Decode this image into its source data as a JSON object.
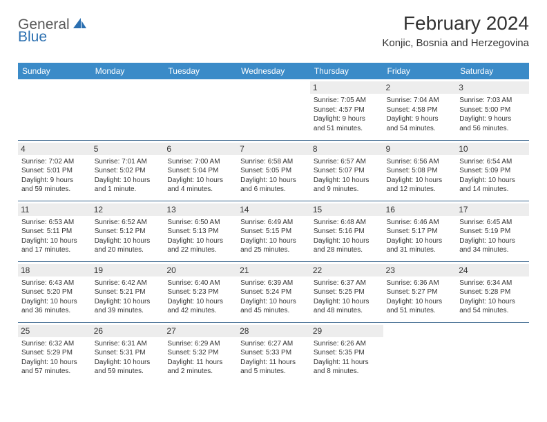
{
  "logo": {
    "part1": "General",
    "part2": "Blue"
  },
  "title": "February 2024",
  "subtitle": "Konjic, Bosnia and Herzegovina",
  "colors": {
    "header_bg": "#3b8bc8",
    "header_text": "#ffffff",
    "daynum_bg": "#ededed",
    "border": "#2f5d87",
    "logo_gray": "#5a5a5a",
    "logo_blue": "#2b6fb0",
    "text": "#333333",
    "background": "#ffffff"
  },
  "day_headers": [
    "Sunday",
    "Monday",
    "Tuesday",
    "Wednesday",
    "Thursday",
    "Friday",
    "Saturday"
  ],
  "weeks": [
    [
      null,
      null,
      null,
      null,
      {
        "n": "1",
        "sr": "Sunrise: 7:05 AM",
        "ss": "Sunset: 4:57 PM",
        "d1": "Daylight: 9 hours",
        "d2": "and 51 minutes."
      },
      {
        "n": "2",
        "sr": "Sunrise: 7:04 AM",
        "ss": "Sunset: 4:58 PM",
        "d1": "Daylight: 9 hours",
        "d2": "and 54 minutes."
      },
      {
        "n": "3",
        "sr": "Sunrise: 7:03 AM",
        "ss": "Sunset: 5:00 PM",
        "d1": "Daylight: 9 hours",
        "d2": "and 56 minutes."
      }
    ],
    [
      {
        "n": "4",
        "sr": "Sunrise: 7:02 AM",
        "ss": "Sunset: 5:01 PM",
        "d1": "Daylight: 9 hours",
        "d2": "and 59 minutes."
      },
      {
        "n": "5",
        "sr": "Sunrise: 7:01 AM",
        "ss": "Sunset: 5:02 PM",
        "d1": "Daylight: 10 hours",
        "d2": "and 1 minute."
      },
      {
        "n": "6",
        "sr": "Sunrise: 7:00 AM",
        "ss": "Sunset: 5:04 PM",
        "d1": "Daylight: 10 hours",
        "d2": "and 4 minutes."
      },
      {
        "n": "7",
        "sr": "Sunrise: 6:58 AM",
        "ss": "Sunset: 5:05 PM",
        "d1": "Daylight: 10 hours",
        "d2": "and 6 minutes."
      },
      {
        "n": "8",
        "sr": "Sunrise: 6:57 AM",
        "ss": "Sunset: 5:07 PM",
        "d1": "Daylight: 10 hours",
        "d2": "and 9 minutes."
      },
      {
        "n": "9",
        "sr": "Sunrise: 6:56 AM",
        "ss": "Sunset: 5:08 PM",
        "d1": "Daylight: 10 hours",
        "d2": "and 12 minutes."
      },
      {
        "n": "10",
        "sr": "Sunrise: 6:54 AM",
        "ss": "Sunset: 5:09 PM",
        "d1": "Daylight: 10 hours",
        "d2": "and 14 minutes."
      }
    ],
    [
      {
        "n": "11",
        "sr": "Sunrise: 6:53 AM",
        "ss": "Sunset: 5:11 PM",
        "d1": "Daylight: 10 hours",
        "d2": "and 17 minutes."
      },
      {
        "n": "12",
        "sr": "Sunrise: 6:52 AM",
        "ss": "Sunset: 5:12 PM",
        "d1": "Daylight: 10 hours",
        "d2": "and 20 minutes."
      },
      {
        "n": "13",
        "sr": "Sunrise: 6:50 AM",
        "ss": "Sunset: 5:13 PM",
        "d1": "Daylight: 10 hours",
        "d2": "and 22 minutes."
      },
      {
        "n": "14",
        "sr": "Sunrise: 6:49 AM",
        "ss": "Sunset: 5:15 PM",
        "d1": "Daylight: 10 hours",
        "d2": "and 25 minutes."
      },
      {
        "n": "15",
        "sr": "Sunrise: 6:48 AM",
        "ss": "Sunset: 5:16 PM",
        "d1": "Daylight: 10 hours",
        "d2": "and 28 minutes."
      },
      {
        "n": "16",
        "sr": "Sunrise: 6:46 AM",
        "ss": "Sunset: 5:17 PM",
        "d1": "Daylight: 10 hours",
        "d2": "and 31 minutes."
      },
      {
        "n": "17",
        "sr": "Sunrise: 6:45 AM",
        "ss": "Sunset: 5:19 PM",
        "d1": "Daylight: 10 hours",
        "d2": "and 34 minutes."
      }
    ],
    [
      {
        "n": "18",
        "sr": "Sunrise: 6:43 AM",
        "ss": "Sunset: 5:20 PM",
        "d1": "Daylight: 10 hours",
        "d2": "and 36 minutes."
      },
      {
        "n": "19",
        "sr": "Sunrise: 6:42 AM",
        "ss": "Sunset: 5:21 PM",
        "d1": "Daylight: 10 hours",
        "d2": "and 39 minutes."
      },
      {
        "n": "20",
        "sr": "Sunrise: 6:40 AM",
        "ss": "Sunset: 5:23 PM",
        "d1": "Daylight: 10 hours",
        "d2": "and 42 minutes."
      },
      {
        "n": "21",
        "sr": "Sunrise: 6:39 AM",
        "ss": "Sunset: 5:24 PM",
        "d1": "Daylight: 10 hours",
        "d2": "and 45 minutes."
      },
      {
        "n": "22",
        "sr": "Sunrise: 6:37 AM",
        "ss": "Sunset: 5:25 PM",
        "d1": "Daylight: 10 hours",
        "d2": "and 48 minutes."
      },
      {
        "n": "23",
        "sr": "Sunrise: 6:36 AM",
        "ss": "Sunset: 5:27 PM",
        "d1": "Daylight: 10 hours",
        "d2": "and 51 minutes."
      },
      {
        "n": "24",
        "sr": "Sunrise: 6:34 AM",
        "ss": "Sunset: 5:28 PM",
        "d1": "Daylight: 10 hours",
        "d2": "and 54 minutes."
      }
    ],
    [
      {
        "n": "25",
        "sr": "Sunrise: 6:32 AM",
        "ss": "Sunset: 5:29 PM",
        "d1": "Daylight: 10 hours",
        "d2": "and 57 minutes."
      },
      {
        "n": "26",
        "sr": "Sunrise: 6:31 AM",
        "ss": "Sunset: 5:31 PM",
        "d1": "Daylight: 10 hours",
        "d2": "and 59 minutes."
      },
      {
        "n": "27",
        "sr": "Sunrise: 6:29 AM",
        "ss": "Sunset: 5:32 PM",
        "d1": "Daylight: 11 hours",
        "d2": "and 2 minutes."
      },
      {
        "n": "28",
        "sr": "Sunrise: 6:27 AM",
        "ss": "Sunset: 5:33 PM",
        "d1": "Daylight: 11 hours",
        "d2": "and 5 minutes."
      },
      {
        "n": "29",
        "sr": "Sunrise: 6:26 AM",
        "ss": "Sunset: 5:35 PM",
        "d1": "Daylight: 11 hours",
        "d2": "and 8 minutes."
      },
      null,
      null
    ]
  ]
}
